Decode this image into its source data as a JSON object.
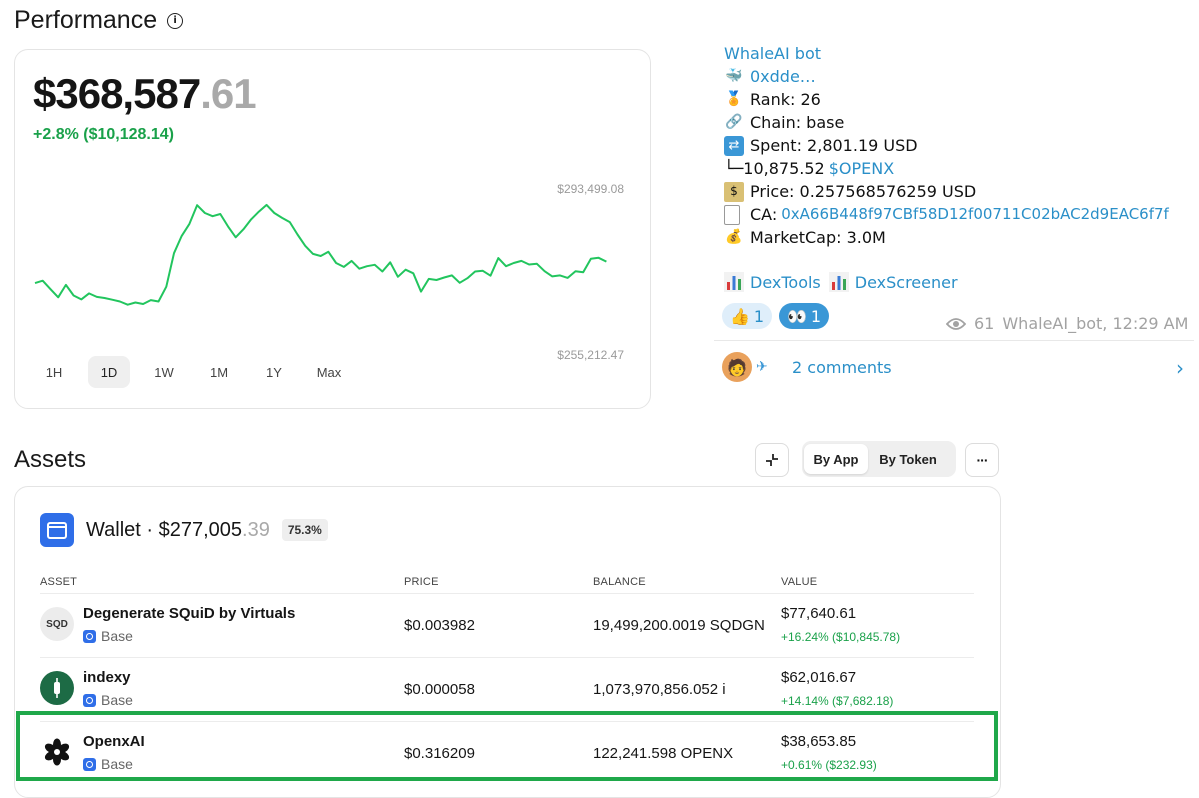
{
  "performance": {
    "title": "Performance",
    "total_main": "$368,587",
    "total_cents": ".61",
    "change": "+2.8% ($10,128.14)",
    "axis_high": "$293,499.08",
    "axis_low": "$255,212.47",
    "ranges": [
      "1H",
      "1D",
      "1W",
      "1M",
      "1Y",
      "Max"
    ],
    "active_range": "1D",
    "line_color": "#22c55e"
  },
  "chart_data": {
    "type": "line",
    "title": "",
    "xlabel": "",
    "ylabel": "",
    "ylim": [
      255212.47,
      293499.08
    ],
    "series": [
      {
        "values": [
          268500,
          269200,
          266800,
          264500,
          268000,
          265000,
          263900,
          265600,
          264600,
          264300,
          263800,
          263300,
          262400,
          263000,
          262600,
          263700,
          263300,
          267500,
          277000,
          281900,
          285300,
          290600,
          288400,
          287500,
          288100,
          284600,
          281500,
          283800,
          286600,
          288800,
          290700,
          288400,
          287000,
          285800,
          282300,
          279100,
          276800,
          276200,
          277400,
          274200,
          273100,
          274800,
          272600,
          273300,
          273700,
          271800,
          274400,
          270300,
          272300,
          271300,
          266100,
          269700,
          269400,
          270100,
          270700,
          268600,
          269900,
          271800,
          272000,
          270600,
          275600,
          273300,
          274200,
          274800,
          273800,
          274000,
          271900,
          270400,
          270700,
          270000,
          271900,
          271600,
          275400,
          275700,
          274600
        ]
      }
    ]
  },
  "telegram": {
    "sender": "WhaleAI bot",
    "whale_emoji": "🐳",
    "address_short": "0xdde…",
    "rank": "Rank: 26",
    "chain": "Chain: base",
    "spent": "Spent: 2,801.19 USD",
    "received_prefix": "└─10,875.52 ",
    "received_token": "$OPENX",
    "price": "Price: 0.257568576259 USD",
    "ca_prefix": "CA: ",
    "ca_value": "0xA66B448f97CBf58D12f00711C02bAC2d9EAC6f7f",
    "marketcap": "MarketCap: 3.0M",
    "link1": "DexTools",
    "link2": "DexScreener",
    "reaction1_count": "1",
    "reaction2_count": "1",
    "views": "61",
    "author_time": "WhaleAI_bot, 12:29 AM",
    "comments": "2 comments"
  },
  "assets": {
    "title": "Assets",
    "seg_by_app": "By App",
    "seg_by_token": "By Token",
    "more": "···",
    "wallet_label": "Wallet · $277,005",
    "wallet_cents": ".39",
    "wallet_pct": "75.3%",
    "headers": {
      "asset": "ASSET",
      "price": "PRICE",
      "balance": "BALANCE",
      "value": "VALUE"
    },
    "rows": [
      {
        "icon_text": "SQD",
        "name": "Degenerate SQuiD by Virtuals",
        "chain": "Base",
        "price": "$0.003982",
        "balance": "19,499,200.0019 SQDGN",
        "value": "$77,640.61",
        "change": "+16.24% ($10,845.78)"
      },
      {
        "icon_text": "",
        "name": "indexy",
        "chain": "Base",
        "price": "$0.000058",
        "balance": "1,073,970,856.052 i",
        "value": "$62,016.67",
        "change": "+14.14% ($7,682.18)"
      },
      {
        "icon_text": "",
        "name": "OpenxAI",
        "chain": "Base",
        "price": "$0.316209",
        "balance": "122,241.598 OPENX",
        "value": "$38,653.85",
        "change": "+0.61% ($232.93)"
      }
    ],
    "highlight_color": "#1fa84a"
  }
}
